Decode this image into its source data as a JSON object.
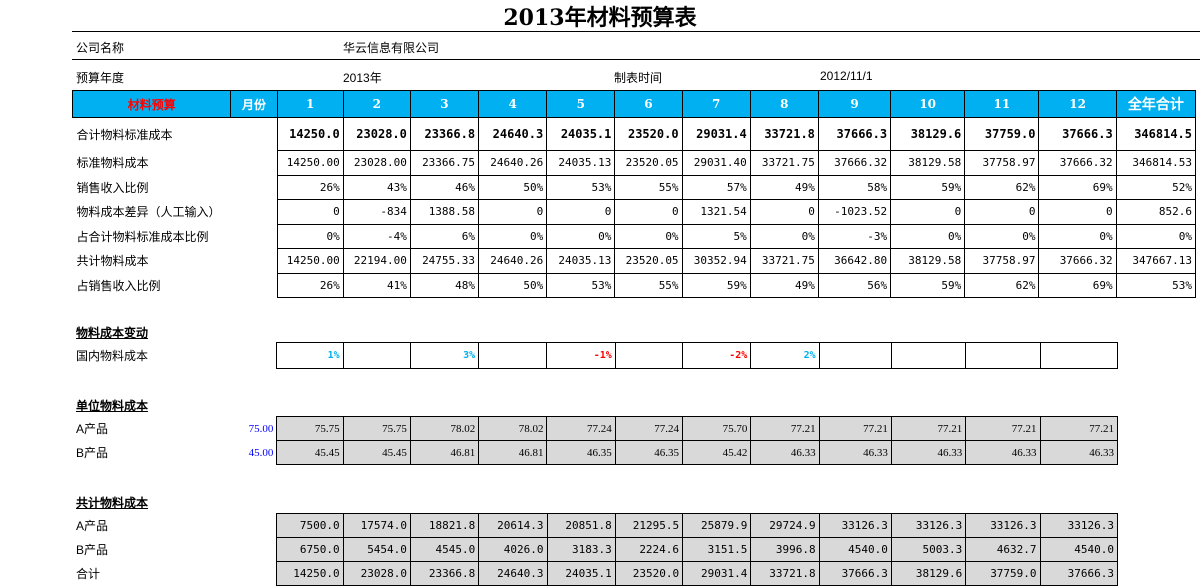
{
  "title": "2013年材料预算表",
  "info": {
    "company_label": "公司名称",
    "company_value": "华云信息有限公司",
    "year_label": "预算年度",
    "year_value": "2013年",
    "date_label": "制表时间",
    "date_value": "2012/11/1"
  },
  "colors": {
    "header_bg": "#00b0f0",
    "header_label": "#ff0000",
    "positive": "#00b0f0",
    "negative": "#ff0000",
    "base_value": "#0000ff",
    "shaded_cell": "#d9d9d9"
  },
  "main": {
    "header": {
      "label": "材料预算",
      "month_label": "月份",
      "months": [
        "1",
        "2",
        "3",
        "4",
        "5",
        "6",
        "7",
        "8",
        "9",
        "10",
        "11",
        "12"
      ],
      "total_label": "全年合计"
    },
    "rows": [
      {
        "label": "合计物料标准成本",
        "values": [
          "14250.0",
          "23028.0",
          "23366.8",
          "24640.3",
          "24035.1",
          "23520.0",
          "29031.4",
          "33721.8",
          "37666.3",
          "38129.6",
          "37759.0",
          "37666.3"
        ],
        "total": "346814.5"
      },
      {
        "label": "标准物料成本",
        "values": [
          "14250.00",
          "23028.00",
          "23366.75",
          "24640.26",
          "24035.13",
          "23520.05",
          "29031.40",
          "33721.75",
          "37666.32",
          "38129.58",
          "37758.97",
          "37666.32"
        ],
        "total": "346814.53"
      },
      {
        "label": "销售收入比例",
        "values": [
          "26%",
          "43%",
          "46%",
          "50%",
          "53%",
          "55%",
          "57%",
          "49%",
          "58%",
          "59%",
          "62%",
          "69%"
        ],
        "total": "52%"
      },
      {
        "label": "物料成本差异（人工输入）",
        "values": [
          "0",
          "-834",
          "1388.58",
          "0",
          "0",
          "0",
          "1321.54",
          "0",
          "-1023.52",
          "0",
          "0",
          "0"
        ],
        "total": "852.6"
      },
      {
        "label": "占合计物料标准成本比例",
        "values": [
          "0%",
          "-4%",
          "6%",
          "0%",
          "0%",
          "0%",
          "5%",
          "0%",
          "-3%",
          "0%",
          "0%",
          "0%"
        ],
        "total": "0%"
      },
      {
        "label": "共计物料成本",
        "values": [
          "14250.00",
          "22194.00",
          "24755.33",
          "24640.26",
          "24035.13",
          "23520.05",
          "30352.94",
          "33721.75",
          "36642.80",
          "38129.58",
          "37758.97",
          "37666.32"
        ],
        "total": "347667.13"
      },
      {
        "label": "占销售收入比例",
        "values": [
          "26%",
          "41%",
          "48%",
          "50%",
          "53%",
          "55%",
          "59%",
          "49%",
          "56%",
          "59%",
          "62%",
          "69%"
        ],
        "total": "53%"
      }
    ]
  },
  "section_change": {
    "title": "物料成本变动",
    "rows": [
      {
        "label": "国内物料成本",
        "values": [
          "1%",
          "",
          "3%",
          "",
          "-1%",
          "",
          "-2%",
          "2%",
          "",
          "",
          "",
          ""
        ]
      }
    ]
  },
  "section_unit": {
    "title": "单位物料成本",
    "rows": [
      {
        "label": "A产品",
        "base": "75.00",
        "values": [
          "75.75",
          "75.75",
          "78.02",
          "78.02",
          "77.24",
          "77.24",
          "75.70",
          "77.21",
          "77.21",
          "77.21",
          "77.21",
          "77.21"
        ]
      },
      {
        "label": "B产品",
        "base": "45.00",
        "values": [
          "45.45",
          "45.45",
          "46.81",
          "46.81",
          "46.35",
          "46.35",
          "45.42",
          "46.33",
          "46.33",
          "46.33",
          "46.33",
          "46.33"
        ]
      }
    ]
  },
  "section_total": {
    "title": "共计物料成本",
    "rows": [
      {
        "label": "A产品",
        "values": [
          "7500.0",
          "17574.0",
          "18821.8",
          "20614.3",
          "20851.8",
          "21295.5",
          "25879.9",
          "29724.9",
          "33126.3",
          "33126.3",
          "33126.3",
          "33126.3"
        ]
      },
      {
        "label": "B产品",
        "values": [
          "6750.0",
          "5454.0",
          "4545.0",
          "4026.0",
          "3183.3",
          "2224.6",
          "3151.5",
          "3996.8",
          "4540.0",
          "5003.3",
          "4632.7",
          "4540.0"
        ]
      },
      {
        "label": "合计",
        "values": [
          "14250.0",
          "23028.0",
          "23366.8",
          "24640.3",
          "24035.1",
          "23520.0",
          "29031.4",
          "33721.8",
          "37666.3",
          "38129.6",
          "37759.0",
          "37666.3"
        ]
      }
    ]
  }
}
